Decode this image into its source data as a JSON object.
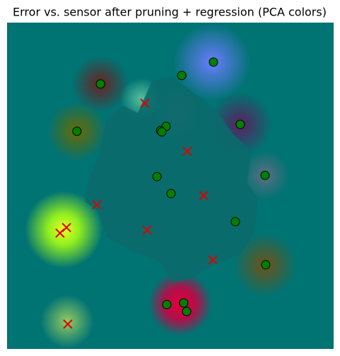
{
  "chart_data": {
    "type": "scatter",
    "title": "Error vs. sensor after pruning + regression (PCA colors)",
    "xlim": [
      0,
      100
    ],
    "ylim": [
      0,
      100
    ],
    "series": [
      {
        "color": "#008000",
        "marker": "o",
        "x": [
          63.2,
          53.5,
          28.6,
          21.4,
          71.4,
          48.7,
          47.0,
          47.4,
          79.0,
          45.9,
          50.2,
          69.9,
          79.2,
          48.9,
          54.1,
          55.0
        ],
        "values": [
          87.9,
          83.8,
          81.2,
          66.7,
          68.8,
          68.2,
          66.9,
          66.5,
          53.2,
          52.8,
          47.6,
          39.0,
          25.8,
          13.6,
          14.1,
          11.5
        ]
      },
      {
        "color": "#e00000",
        "marker": "x",
        "x": [
          42.2,
          55.2,
          60.2,
          27.5,
          18.2,
          16.2,
          42.9,
          63.0,
          18.6
        ],
        "values": [
          75.3,
          60.6,
          47.0,
          44.2,
          37.2,
          35.5,
          36.4,
          27.3,
          7.6
        ]
      }
    ]
  }
}
